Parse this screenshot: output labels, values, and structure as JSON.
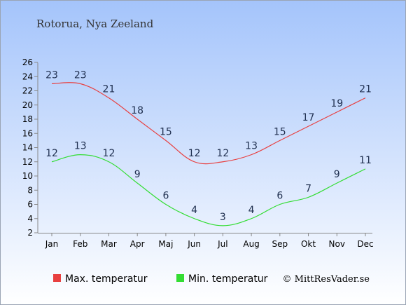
{
  "chart_data": {
    "type": "line",
    "title": "Rotorua, Nya Zeeland",
    "categories": [
      "Jan",
      "Feb",
      "Mar",
      "Apr",
      "Maj",
      "Jun",
      "Jul",
      "Aug",
      "Sep",
      "Okt",
      "Nov",
      "Dec"
    ],
    "series": [
      {
        "name": "Max. temperatur",
        "color": "#e84040",
        "values": [
          23,
          23,
          21,
          18,
          15,
          12,
          12,
          13,
          15,
          17,
          19,
          21
        ]
      },
      {
        "name": "Min. temperatur",
        "color": "#33dd33",
        "values": [
          12,
          13,
          12,
          9,
          6,
          4,
          3,
          4,
          6,
          7,
          9,
          11
        ]
      }
    ],
    "y_ticks": [
      2,
      4,
      6,
      8,
      10,
      12,
      14,
      16,
      18,
      20,
      22,
      24,
      26
    ],
    "ylim": [
      2,
      26
    ],
    "grid": false,
    "legend_position": "bottom-left",
    "credit": "© MittResVader.se"
  },
  "colors": {
    "bg_top": "#a4c4fb",
    "bg_bottom": "#ffffff",
    "label": "#1f2f4f"
  }
}
